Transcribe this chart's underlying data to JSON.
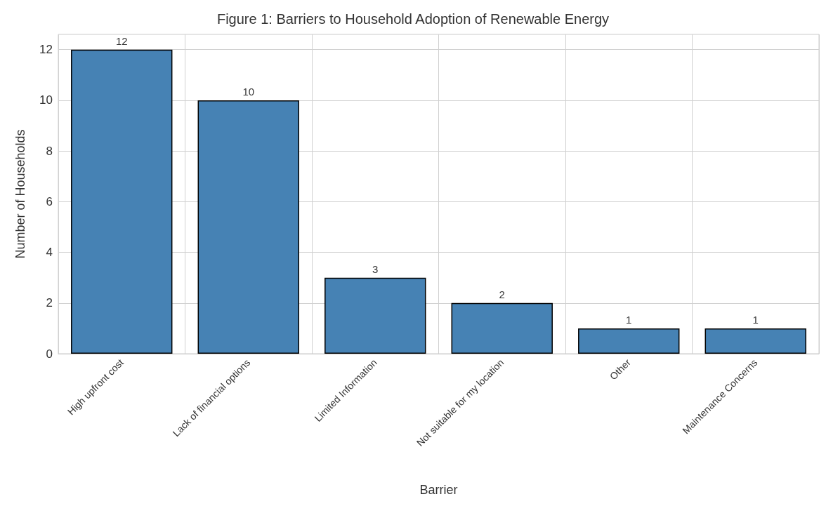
{
  "chart_data": {
    "type": "bar",
    "title": "Figure 1: Barriers to Household Adoption of Renewable Energy",
    "xlabel": "Barrier",
    "ylabel": "Number of Households",
    "categories": [
      "High upfront cost",
      "Lack of financial options",
      "Limited Information",
      "Not suitable for my location",
      "Other",
      "Maintenance Concerns"
    ],
    "values": [
      12,
      10,
      3,
      2,
      1,
      1
    ],
    "color": "#4682b4",
    "ylim": [
      0,
      12.6
    ],
    "yticks": [
      0,
      2,
      4,
      6,
      8,
      10,
      12
    ],
    "grid": true,
    "data_labels": true
  }
}
